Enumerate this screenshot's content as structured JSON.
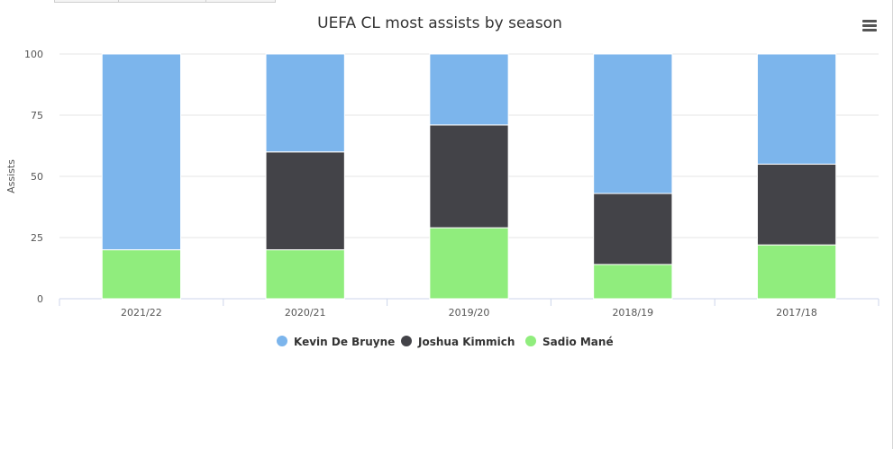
{
  "icons": {
    "menu": "hamburger-menu-icon"
  },
  "chart_data": {
    "type": "bar",
    "stacked": true,
    "title": "UEFA CL most assists by season",
    "xlabel": "",
    "ylabel": "Assists",
    "ylim": [
      0,
      100
    ],
    "yticks": [
      0,
      25,
      50,
      75,
      100
    ],
    "grid": true,
    "legend_position": "bottom",
    "categories": [
      "2021/22",
      "2020/21",
      "2019/20",
      "2018/19",
      "2017/18"
    ],
    "series": [
      {
        "name": "Kevin De Bruyne",
        "color": "#7cb5ec",
        "values": [
          80,
          40,
          29,
          57,
          45
        ]
      },
      {
        "name": "Joshua Kimmich",
        "color": "#434348",
        "values": [
          0,
          40,
          42,
          29,
          33
        ]
      },
      {
        "name": "Sadio Mané",
        "color": "#90ed7d",
        "values": [
          20,
          20,
          29,
          14,
          22
        ]
      }
    ]
  }
}
